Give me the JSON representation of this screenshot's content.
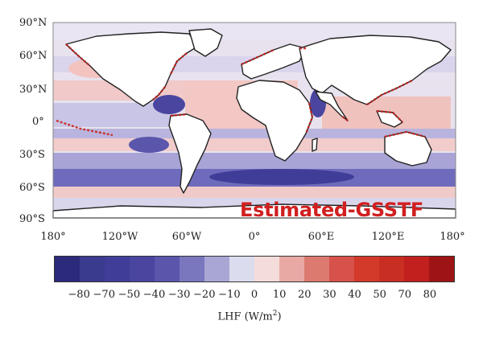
{
  "map": {
    "overlay_title": "Estimated-GSSTF",
    "lat_labels": [
      "90°N",
      "60°N",
      "30°N",
      "0°",
      "30°S",
      "60°S",
      "90°S"
    ],
    "lon_labels": [
      "180°",
      "120°W",
      "60°W",
      "0°",
      "60°E",
      "120°E",
      "180°"
    ]
  },
  "colorbar": {
    "colors": [
      "#2c2a7a",
      "#3a3a8e",
      "#3f3d98",
      "#4a46a0",
      "#5a56ac",
      "#7a77bf",
      "#a9a6d6",
      "#dcdcef",
      "#f4dcda",
      "#e8a9a4",
      "#dd7a70",
      "#d6524a",
      "#d33a2a",
      "#c92e22",
      "#c1201f",
      "#9e1414"
    ],
    "ticks": [
      "−80",
      "−70",
      "−50",
      "−40",
      "−30",
      "−20",
      "−10",
      "0",
      "10",
      "20",
      "30",
      "40",
      "50",
      "70",
      "80"
    ],
    "label": "LHF (W/m",
    "label_sup": "2",
    "label_end": ")"
  }
}
